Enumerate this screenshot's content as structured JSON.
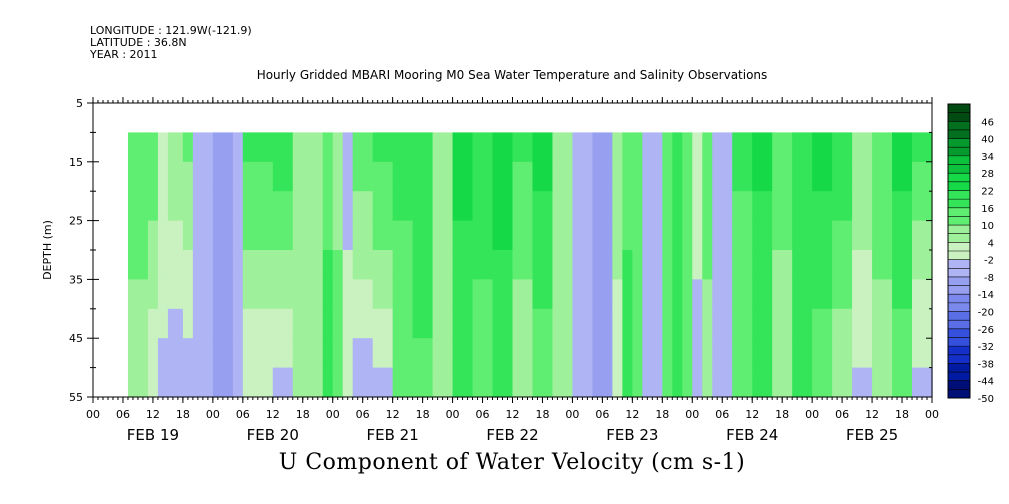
{
  "header": {
    "longitude": "LONGITUDE : 121.9W(-121.9)",
    "latitude": "LATITUDE : 36.8N",
    "year": "YEAR : 2011"
  },
  "chart_data": {
    "type": "heatmap",
    "title": "Hourly Gridded MBARI Mooring M0 Sea Water Temperature and Salinity Observations",
    "xlabel": "U Component of Water Velocity (cm s-1)",
    "ylabel": "DEPTH (m)",
    "y_ticks": [
      5,
      15,
      25,
      35,
      45,
      55
    ],
    "ylim": [
      55,
      5
    ],
    "data_depth_range": [
      10,
      55
    ],
    "x_hour_ticks": [
      "00",
      "06",
      "12",
      "18",
      "00",
      "06",
      "12",
      "18",
      "00",
      "06",
      "12",
      "18",
      "00",
      "06",
      "12",
      "18",
      "00",
      "06",
      "12",
      "18",
      "00",
      "06",
      "12",
      "18",
      "00",
      "06",
      "12",
      "18",
      "00"
    ],
    "x_day_labels": [
      "FEB 19",
      "FEB 20",
      "FEB 21",
      "FEB 22",
      "FEB 23",
      "FEB 24",
      "FEB 25"
    ],
    "data_start_hour": 7,
    "colorbar": {
      "labels": [
        "46",
        "40",
        "34",
        "28",
        "22",
        "16",
        "10",
        "4",
        "-2",
        "-8",
        "-14",
        "-20",
        "-26",
        "-32",
        "-38",
        "-44",
        "-50"
      ],
      "range": [
        -50,
        52
      ],
      "step": 3
    },
    "profile_columns": [
      {
        "hour": 7,
        "surface": 12,
        "bottom": 8
      },
      {
        "hour": 11,
        "surface": 14,
        "bottom": 0
      },
      {
        "hour": 13,
        "surface": 4,
        "bottom": -4
      },
      {
        "hour": 15,
        "surface": 8,
        "bottom": -6
      },
      {
        "hour": 18,
        "surface": 12,
        "bottom": -5
      },
      {
        "hour": 20,
        "surface": -6,
        "bottom": -8
      },
      {
        "hour": 24,
        "surface": -9,
        "bottom": -9
      },
      {
        "hour": 28,
        "surface": -4,
        "bottom": -5
      },
      {
        "hour": 30,
        "surface": 18,
        "bottom": -2
      },
      {
        "hour": 36,
        "surface": 22,
        "bottom": -4
      },
      {
        "hour": 40,
        "surface": 10,
        "bottom": 6
      },
      {
        "hour": 43,
        "surface": 8,
        "bottom": 10
      },
      {
        "hour": 46,
        "surface": 12,
        "bottom": 22
      },
      {
        "hour": 48,
        "surface": 8,
        "bottom": 12
      },
      {
        "hour": 50,
        "surface": -6,
        "bottom": 4
      },
      {
        "hour": 52,
        "surface": 16,
        "bottom": -6
      },
      {
        "hour": 56,
        "surface": 20,
        "bottom": -5
      },
      {
        "hour": 60,
        "surface": 18,
        "bottom": 12
      },
      {
        "hour": 64,
        "surface": 22,
        "bottom": 14
      },
      {
        "hour": 68,
        "surface": 10,
        "bottom": 4
      },
      {
        "hour": 72,
        "surface": 24,
        "bottom": 18
      },
      {
        "hour": 76,
        "surface": 20,
        "bottom": 12
      },
      {
        "hour": 80,
        "surface": 26,
        "bottom": 16
      },
      {
        "hour": 84,
        "surface": 18,
        "bottom": 4
      },
      {
        "hour": 88,
        "surface": 24,
        "bottom": 12
      },
      {
        "hour": 92,
        "surface": 10,
        "bottom": 8
      },
      {
        "hour": 96,
        "surface": -2,
        "bottom": -6
      },
      {
        "hour": 100,
        "surface": -8,
        "bottom": -12
      },
      {
        "hour": 104,
        "surface": 6,
        "bottom": 2
      },
      {
        "hour": 106,
        "surface": 14,
        "bottom": 18
      },
      {
        "hour": 108,
        "surface": 16,
        "bottom": 10
      },
      {
        "hour": 110,
        "surface": -4,
        "bottom": -2
      },
      {
        "hour": 112,
        "surface": -8,
        "bottom": -6
      },
      {
        "hour": 114,
        "surface": 14,
        "bottom": 12
      },
      {
        "hour": 116,
        "surface": 20,
        "bottom": 16
      },
      {
        "hour": 118,
        "surface": 16,
        "bottom": 10
      },
      {
        "hour": 120,
        "surface": 0,
        "bottom": -4
      },
      {
        "hour": 122,
        "surface": 14,
        "bottom": 6
      },
      {
        "hour": 124,
        "surface": -6,
        "bottom": -6
      },
      {
        "hour": 128,
        "surface": 18,
        "bottom": 10
      },
      {
        "hour": 132,
        "surface": 24,
        "bottom": 16
      },
      {
        "hour": 136,
        "surface": 14,
        "bottom": 4
      },
      {
        "hour": 140,
        "surface": 22,
        "bottom": 18
      },
      {
        "hour": 144,
        "surface": 26,
        "bottom": 10
      },
      {
        "hour": 148,
        "surface": 22,
        "bottom": 4
      },
      {
        "hour": 152,
        "surface": 10,
        "bottom": -4
      },
      {
        "hour": 156,
        "surface": 14,
        "bottom": 6
      },
      {
        "hour": 160,
        "surface": 24,
        "bottom": 12
      },
      {
        "hour": 164,
        "surface": 18,
        "bottom": -6
      },
      {
        "hour": 168,
        "surface": 10,
        "bottom": -10
      }
    ]
  }
}
